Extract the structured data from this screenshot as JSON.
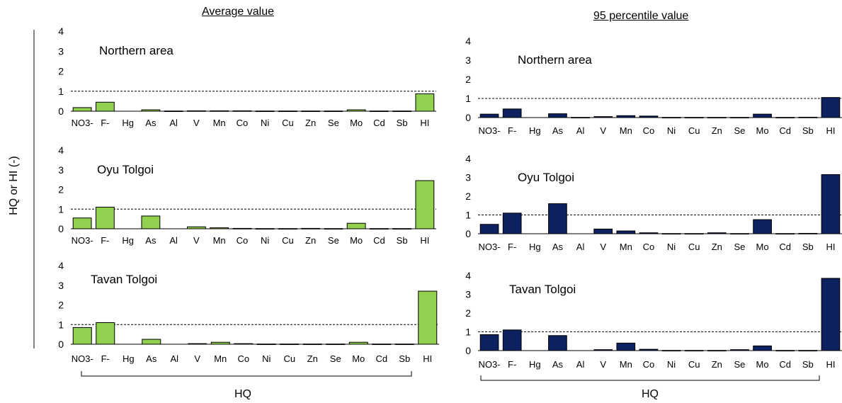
{
  "titles": {
    "left": "Average value",
    "right": "95 percentile value"
  },
  "ylabel": "HQ or HI (-)",
  "xlabel": "HQ",
  "colors": {
    "average": "#92d050",
    "percentile95": "#0d2160"
  },
  "chart_data": [
    {
      "type": "bar",
      "title": "Northern area",
      "column": "Average value",
      "categories": [
        "NO3-",
        "F-",
        "Hg",
        "As",
        "Al",
        "V",
        "Mn",
        "Co",
        "Ni",
        "Cu",
        "Zn",
        "Se",
        "Mo",
        "Cd",
        "Sb",
        "HI"
      ],
      "values": [
        0.18,
        0.45,
        0,
        0.07,
        0.01,
        0.02,
        0.02,
        0.02,
        0.01,
        0.01,
        0.01,
        0.01,
        0.07,
        0.01,
        0.01,
        0.87
      ],
      "ylim": [
        0,
        4
      ],
      "yticks": [
        "0",
        "1",
        "2",
        "3",
        "4"
      ],
      "reference_line": 1
    },
    {
      "type": "bar",
      "title": "Oyu Tolgoi",
      "column": "Average value",
      "categories": [
        "NO3-",
        "F-",
        "Hg",
        "As",
        "Al",
        "V",
        "Mn",
        "Co",
        "Ni",
        "Cu",
        "Zn",
        "Se",
        "Mo",
        "Cd",
        "Sb",
        "HI"
      ],
      "values": [
        0.55,
        1.1,
        0,
        0.65,
        0,
        0.1,
        0.05,
        0.02,
        0.01,
        0.01,
        0.02,
        0.01,
        0.28,
        0.01,
        0.01,
        2.45
      ],
      "ylim": [
        0,
        4
      ],
      "yticks": [
        "0",
        "1",
        "2",
        "3",
        "4"
      ],
      "reference_line": 1
    },
    {
      "type": "bar",
      "title": "Tavan Tolgoi",
      "column": "Average value",
      "categories": [
        "NO3-",
        "F-",
        "Hg",
        "As",
        "Al",
        "V",
        "Mn",
        "Co",
        "Ni",
        "Cu",
        "Zn",
        "Se",
        "Mo",
        "Cd",
        "Sb",
        "HI"
      ],
      "values": [
        0.85,
        1.1,
        0,
        0.25,
        0,
        0.03,
        0.1,
        0.03,
        0.01,
        0.01,
        0.01,
        0.01,
        0.1,
        0.01,
        0.01,
        2.7
      ],
      "ylim": [
        0,
        4
      ],
      "yticks": [
        "0",
        "1",
        "2",
        "3",
        "4"
      ],
      "reference_line": 1
    },
    {
      "type": "bar",
      "title": "Northern area",
      "column": "95 percentile value",
      "categories": [
        "NO3-",
        "F-",
        "Hg",
        "As",
        "Al",
        "V",
        "Mn",
        "Co",
        "Ni",
        "Cu",
        "Zn",
        "Se",
        "Mo",
        "Cd",
        "Sb",
        "HI"
      ],
      "values": [
        0.18,
        0.45,
        0,
        0.2,
        0.01,
        0.05,
        0.1,
        0.08,
        0.01,
        0.01,
        0.01,
        0.01,
        0.18,
        0.01,
        0.02,
        1.05
      ],
      "ylim": [
        0,
        4
      ],
      "yticks": [
        "0",
        "1",
        "2",
        "3",
        "4"
      ],
      "reference_line": 1
    },
    {
      "type": "bar",
      "title": "Oyu Tolgoi",
      "column": "95 percentile value",
      "categories": [
        "NO3-",
        "F-",
        "Hg",
        "As",
        "Al",
        "V",
        "Mn",
        "Co",
        "Ni",
        "Cu",
        "Zn",
        "Se",
        "Mo",
        "Cd",
        "Sb",
        "HI"
      ],
      "values": [
        0.5,
        1.1,
        0,
        1.6,
        0,
        0.25,
        0.15,
        0.05,
        0.01,
        0.01,
        0.05,
        0.01,
        0.75,
        0.01,
        0.02,
        3.15
      ],
      "ylim": [
        0,
        4
      ],
      "yticks": [
        "0",
        "1",
        "2",
        "3",
        "4"
      ],
      "reference_line": 1
    },
    {
      "type": "bar",
      "title": "Tavan Tolgoi",
      "column": "95 percentile value",
      "categories": [
        "NO3-",
        "F-",
        "Hg",
        "As",
        "Al",
        "V",
        "Mn",
        "Co",
        "Ni",
        "Cu",
        "Zn",
        "Se",
        "Mo",
        "Cd",
        "Sb",
        "HI"
      ],
      "values": [
        0.85,
        1.1,
        0,
        0.8,
        0,
        0.05,
        0.4,
        0.07,
        0.01,
        0.01,
        0.01,
        0.05,
        0.25,
        0.01,
        0.01,
        3.85
      ],
      "ylim": [
        0,
        4
      ],
      "yticks": [
        "0",
        "1",
        "2",
        "3",
        "4"
      ],
      "reference_line": 1
    }
  ]
}
